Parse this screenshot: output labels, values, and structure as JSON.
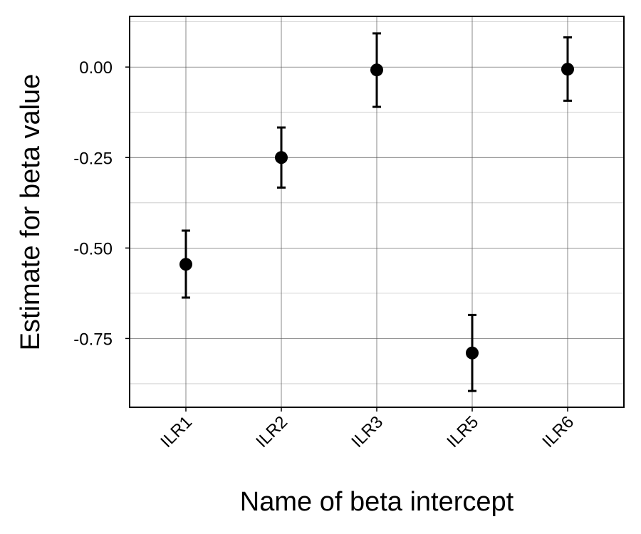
{
  "chart_data": {
    "type": "scatter",
    "title": "",
    "xlabel": "Name of beta intercept",
    "ylabel": "Estimate for beta value",
    "categories": [
      "ILR1",
      "ILR2",
      "ILR3",
      "ILR5",
      "ILR6"
    ],
    "series": [
      {
        "values": [
          -0.545,
          -0.25,
          -0.008,
          -0.79,
          -0.006
        ],
        "lower": [
          -0.637,
          -0.333,
          -0.11,
          -0.895,
          -0.093
        ],
        "upper": [
          -0.452,
          -0.167,
          0.093,
          -0.685,
          0.082
        ]
      }
    ],
    "ylim": [
      -0.94,
      0.14
    ],
    "yticks": [
      0.0,
      -0.25,
      -0.5,
      -0.75
    ],
    "ytick_labels": [
      "0.00",
      "-0.25",
      "-0.50",
      "-0.75"
    ],
    "grid": true,
    "colors": {
      "marker": "#000000",
      "grid": "#b0b0b0",
      "frame": "#000000"
    }
  }
}
